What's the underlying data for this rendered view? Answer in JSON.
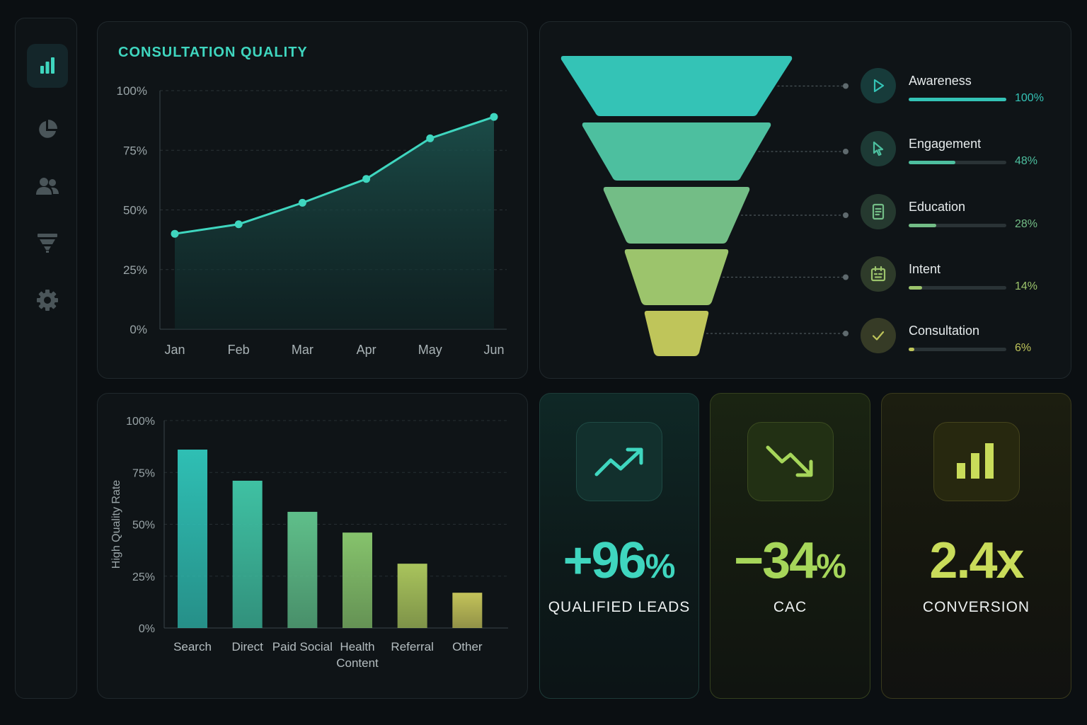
{
  "sidebar": {
    "items": [
      {
        "icon": "bar-chart-icon",
        "active": true
      },
      {
        "icon": "pie-chart-icon",
        "active": false
      },
      {
        "icon": "users-icon",
        "active": false
      },
      {
        "icon": "funnel-icon",
        "active": false
      },
      {
        "icon": "gear-icon",
        "active": false
      }
    ]
  },
  "consultation_quality": {
    "title": "CONSULTATION QUALITY",
    "color": "#3fd6bf"
  },
  "funnel": {
    "stages": [
      {
        "name": "Awareness",
        "pct_label": "100%",
        "fraction": 1.0,
        "icon": "play-icon",
        "color": "#34c3b6"
      },
      {
        "name": "Engagement",
        "pct_label": "48%",
        "fraction": 0.48,
        "icon": "cursor-icon",
        "color": "#4dbf9f"
      },
      {
        "name": "Education",
        "pct_label": "28%",
        "fraction": 0.28,
        "icon": "document-icon",
        "color": "#73bd86"
      },
      {
        "name": "Intent",
        "pct_label": "14%",
        "fraction": 0.14,
        "icon": "calendar-icon",
        "color": "#9cc46c"
      },
      {
        "name": "Consultation",
        "pct_label": "6%",
        "fraction": 0.06,
        "icon": "check-icon",
        "color": "#bfc55a"
      }
    ]
  },
  "kpis": {
    "leads": {
      "value": "+96",
      "unit": "%",
      "label": "QUALIFIED LEADS",
      "color": "#3fd6bf",
      "icon": "trend-up-icon"
    },
    "cac": {
      "value": "−34",
      "unit": "%",
      "label": "CAC",
      "color": "#a6d65a",
      "icon": "trend-down-icon"
    },
    "conversion": {
      "value": "2.4x",
      "unit": "",
      "label": "CONVERSION",
      "color": "#c9dc5a",
      "icon": "bar-chart-icon"
    }
  },
  "chart_data": [
    {
      "type": "area",
      "title": "CONSULTATION QUALITY",
      "x": [
        "Jan",
        "Feb",
        "Mar",
        "Apr",
        "May",
        "Jun"
      ],
      "y": [
        40,
        44,
        53,
        63,
        80,
        89
      ],
      "ylim": [
        0,
        100
      ],
      "yticks": [
        "0%",
        "25%",
        "50%",
        "75%",
        "100%"
      ],
      "grid": true,
      "color": "#3fd6bf"
    },
    {
      "type": "bar",
      "categories": [
        "Search",
        "Direct",
        "Paid Social",
        "Health Content",
        "Referral",
        "Other"
      ],
      "category_lines": [
        [
          "Search"
        ],
        [
          "Direct"
        ],
        [
          "Paid Social"
        ],
        [
          "Health",
          "Content"
        ],
        [
          "Referral"
        ],
        [
          "Other"
        ]
      ],
      "values": [
        86,
        71,
        56,
        46,
        31,
        17
      ],
      "ylabel": "High Quality Rate",
      "ylim": [
        0,
        100
      ],
      "yticks": [
        "0%",
        "25%",
        "50%",
        "75%",
        "100%"
      ],
      "grid": true,
      "colors": [
        "#2fbfb4",
        "#3fc1a3",
        "#5fbf8a",
        "#86c36c",
        "#a9c45c",
        "#c4c35a"
      ]
    }
  ]
}
